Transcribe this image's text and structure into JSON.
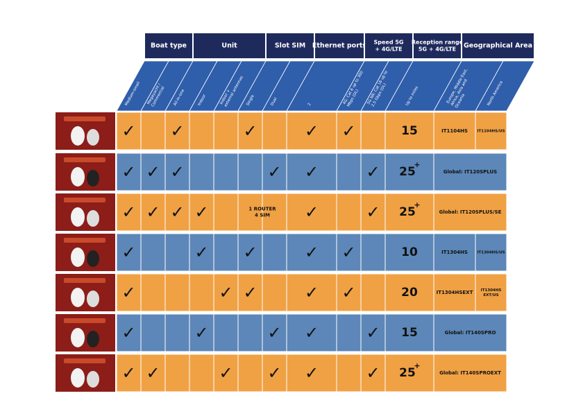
{
  "table": {
    "groups": [
      {
        "lines": [
          "Boat type"
        ],
        "from": 0,
        "to": 1
      },
      {
        "lines": [
          "Unit"
        ],
        "from": 2,
        "to": 4
      },
      {
        "lines": [
          "Slot SIM"
        ],
        "from": 5,
        "to": 6
      },
      {
        "lines": [
          "Ethernet ports"
        ],
        "from": 7,
        "to": 7
      },
      {
        "lines": [
          "Speed 5G",
          "+ 4G/LTE"
        ],
        "from": 8,
        "to": 9
      },
      {
        "lines": [
          "Reception range",
          "5G + 4G/LTE"
        ],
        "from": 10,
        "to": 10
      },
      {
        "lines": [
          "Geographical Area"
        ],
        "from": 11,
        "to": 12
      }
    ],
    "column_headers": [
      [
        "Medium-small"
      ],
      [
        "Megayacht /",
        "Commercial"
      ],
      [
        "All-in-one"
      ],
      [
        "Indoor"
      ],
      [
        "Indoor +",
        "external antennas"
      ],
      [
        "Single"
      ],
      [
        "Dual"
      ],
      [
        "2"
      ],
      [
        "4G: Cat 6 up to 300",
        "Mbps (DL)"
      ],
      [
        "5G NR: Cat 16 up to",
        "2.5 Gbps (DL)"
      ],
      [
        "Up to miles"
      ],
      [
        "Europe, Middle East,",
        "Africa, Asia and",
        "Oceania"
      ],
      [
        "North America"
      ]
    ],
    "rows": [
      {
        "checks": [
          "✓",
          null,
          "✓",
          null,
          null,
          "✓",
          null,
          "✓",
          "✓",
          null
        ],
        "range": "15",
        "geo": [
          "IT1104HS",
          [
            "IT1104HS/US"
          ]
        ]
      },
      {
        "checks": [
          "✓",
          "✓",
          "✓",
          null,
          null,
          null,
          "✓",
          "✓",
          null,
          "✓"
        ],
        "range": "25",
        "range_sup": "+",
        "geo_global": "Global: IT120SPLUS"
      },
      {
        "checks": [
          "✓",
          "✓",
          "✓",
          "✓",
          null,
          null,
          null,
          "✓",
          null,
          "✓"
        ],
        "sim_note": [
          "1 ROUTER",
          "4 SIM"
        ],
        "range": "25",
        "range_sup": "+",
        "geo_global": "Global: IT120SPLUS/SE"
      },
      {
        "checks": [
          "✓",
          null,
          null,
          "✓",
          null,
          "✓",
          null,
          "✓",
          "✓",
          null
        ],
        "range": "10",
        "geo": [
          "IT1304HS",
          [
            "IT1304HS/US"
          ]
        ]
      },
      {
        "checks": [
          "✓",
          null,
          null,
          null,
          "✓",
          "✓",
          null,
          "✓",
          "✓",
          null
        ],
        "range": "20",
        "geo": [
          "IT1304HSEXT",
          [
            "IT1304HS",
            "EXT/US"
          ]
        ]
      },
      {
        "checks": [
          "✓",
          null,
          null,
          "✓",
          null,
          null,
          "✓",
          "✓",
          null,
          "✓"
        ],
        "range": "15",
        "geo_global": "Global: IT140SPRO"
      },
      {
        "checks": [
          "✓",
          "✓",
          null,
          null,
          "✓",
          null,
          "✓",
          "✓",
          null,
          "✓"
        ],
        "range": "25",
        "range_sup": "+",
        "geo_global": "Global: IT140SPROEXT"
      }
    ]
  }
}
